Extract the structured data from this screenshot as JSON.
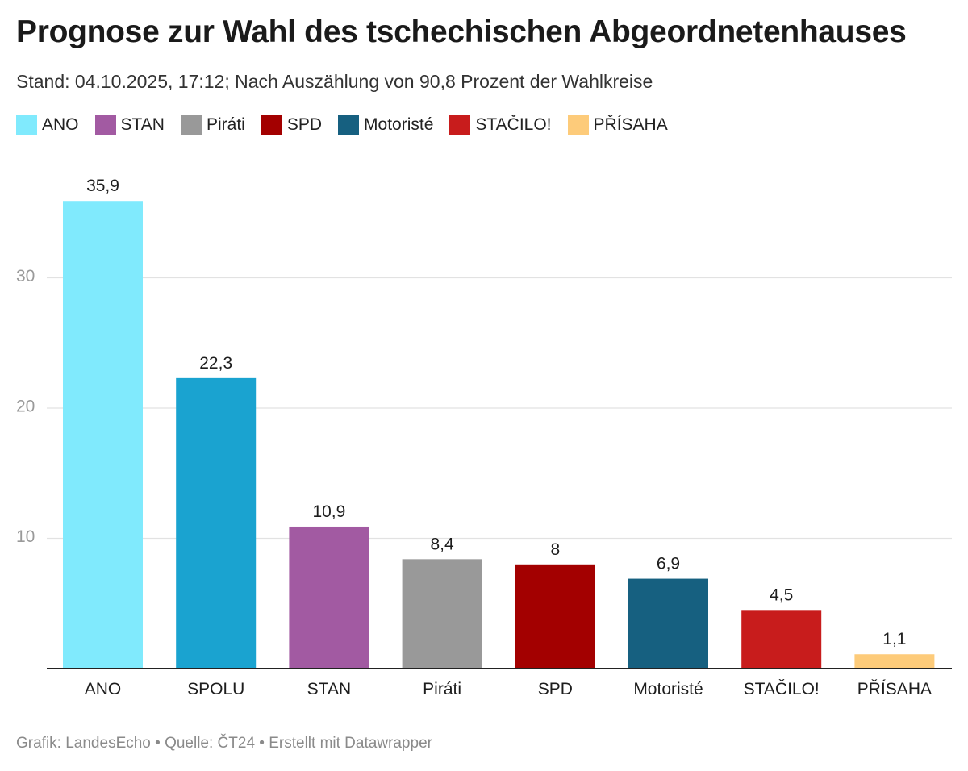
{
  "header": {
    "title": "Prognose zur Wahl des tschechischen Abgeordnetenhauses",
    "subtitle": "Stand: 04.10.2025, 17:12; Nach Auszählung von 90,8 Prozent der Wahlkreise"
  },
  "legend": {
    "items": [
      {
        "label": "ANO",
        "color": "#80eafd"
      },
      {
        "label": "STAN",
        "color": "#a25aa2"
      },
      {
        "label": "Piráti",
        "color": "#999999"
      },
      {
        "label": "SPD",
        "color": "#a30000"
      },
      {
        "label": "Motoristé",
        "color": "#166080"
      },
      {
        "label": "STAČILO!",
        "color": "#c81c1c"
      },
      {
        "label": "PŘÍSAHA",
        "color": "#fdcb7a"
      }
    ]
  },
  "chart_data": {
    "type": "bar",
    "title": "Prognose zur Wahl des tschechischen Abgeordnetenhauses",
    "xlabel": "",
    "ylabel": "",
    "categories": [
      "ANO",
      "SPOLU",
      "STAN",
      "Piráti",
      "SPD",
      "Motoristé",
      "STAČILO!",
      "PŘÍSAHA"
    ],
    "values": [
      35.9,
      22.3,
      10.9,
      8.4,
      8,
      6.9,
      4.5,
      1.1
    ],
    "value_labels": [
      "35,9",
      "22,3",
      "10,9",
      "8,4",
      "8",
      "6,9",
      "4,5",
      "1,1"
    ],
    "colors": [
      "#80eafd",
      "#1aa3d0",
      "#a25aa2",
      "#999999",
      "#a30000",
      "#166080",
      "#c81c1c",
      "#fdcb7a"
    ],
    "yticks": [
      10,
      20,
      30
    ],
    "ytick_labels": [
      "10",
      "20",
      "30"
    ],
    "ylim": [
      0,
      38
    ],
    "grid": true,
    "legend_position": "top-left"
  },
  "footer": {
    "credit": "Grafik: LandesEcho • Quelle: ČT24 • Erstellt mit Datawrapper"
  }
}
